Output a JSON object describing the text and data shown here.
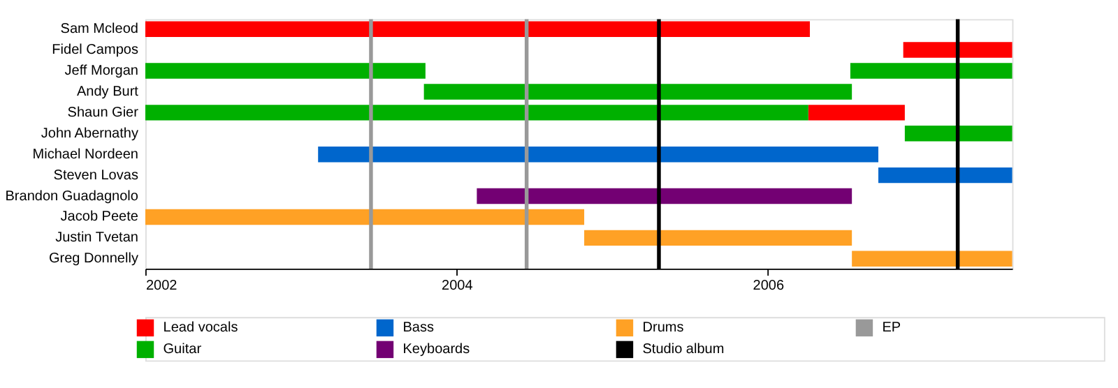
{
  "chart_data": {
    "type": "bar",
    "orientation": "horizontal",
    "legend": "bottom",
    "grid": false,
    "categories": [
      "Sam Mcleod",
      "Fidel Campos",
      "Jeff Morgan",
      "Andy Burt",
      "Shaun Gier",
      "John Abernathy",
      "Michael Nordeen",
      "Steven Lovas",
      "Brandon Guadagnolo",
      "Jacob Peete",
      "Justin Tvetan",
      "Greg Donnelly"
    ],
    "xlim": [
      2002,
      2007.57
    ],
    "xticks": [
      2002,
      2004,
      2006
    ],
    "series": [
      {
        "name": "Lead vocals",
        "color": "#ff0000",
        "base": [
          2002,
          2006.87,
          null,
          null,
          2006.26,
          null,
          null,
          null,
          null,
          null,
          null,
          null
        ],
        "values": [
          4.27,
          0.7,
          null,
          null,
          0.62,
          null,
          null,
          null,
          null,
          null,
          null,
          null
        ]
      },
      {
        "name": "Guitar",
        "color": "#00b000",
        "base": [
          null,
          null,
          2002,
          2003.79,
          2002,
          2006.88,
          null,
          null,
          null,
          null,
          null,
          null
        ],
        "values": [
          null,
          null,
          1.8,
          2.75,
          4.26,
          0.69,
          null,
          null,
          null,
          null,
          null,
          null
        ]
      },
      {
        "color": "#00b000",
        "base": [
          null,
          null,
          2006.53,
          null,
          null,
          null,
          null,
          null,
          null,
          null,
          null,
          null
        ],
        "values": [
          null,
          null,
          1.04,
          null,
          null,
          null,
          null,
          null,
          null,
          null,
          null,
          null
        ]
      },
      {
        "name": "Bass",
        "color": "#0066cc",
        "base": [
          null,
          null,
          null,
          null,
          null,
          null,
          2003.11,
          2006.71,
          null,
          null,
          null,
          null
        ],
        "values": [
          null,
          null,
          null,
          null,
          null,
          null,
          3.6,
          0.86,
          null,
          null,
          null,
          null
        ]
      },
      {
        "name": "Keyboards",
        "color": "#730073",
        "base": [
          null,
          null,
          null,
          null,
          null,
          null,
          null,
          null,
          2004.13,
          null,
          null,
          null
        ],
        "values": [
          null,
          null,
          null,
          null,
          null,
          null,
          null,
          null,
          2.41,
          null,
          null,
          null
        ]
      },
      {
        "name": "Drums",
        "color": "#ffa125",
        "base": [
          null,
          null,
          null,
          null,
          null,
          null,
          null,
          null,
          null,
          2002,
          2004.82,
          2006.54
        ],
        "values": [
          null,
          null,
          null,
          null,
          null,
          null,
          null,
          null,
          null,
          2.82,
          1.72,
          1.03
        ]
      }
    ],
    "ref_lines": [
      {
        "axis": "x",
        "value": 2005.3,
        "label": "Studio album",
        "color": "#000000"
      },
      {
        "axis": "x",
        "value": 2007.22,
        "color": "#000000"
      },
      {
        "axis": "x",
        "value": 2003.45,
        "label": "EP",
        "color": "#999999"
      },
      {
        "axis": "x",
        "value": 2004.45,
        "color": "#999999"
      }
    ]
  }
}
